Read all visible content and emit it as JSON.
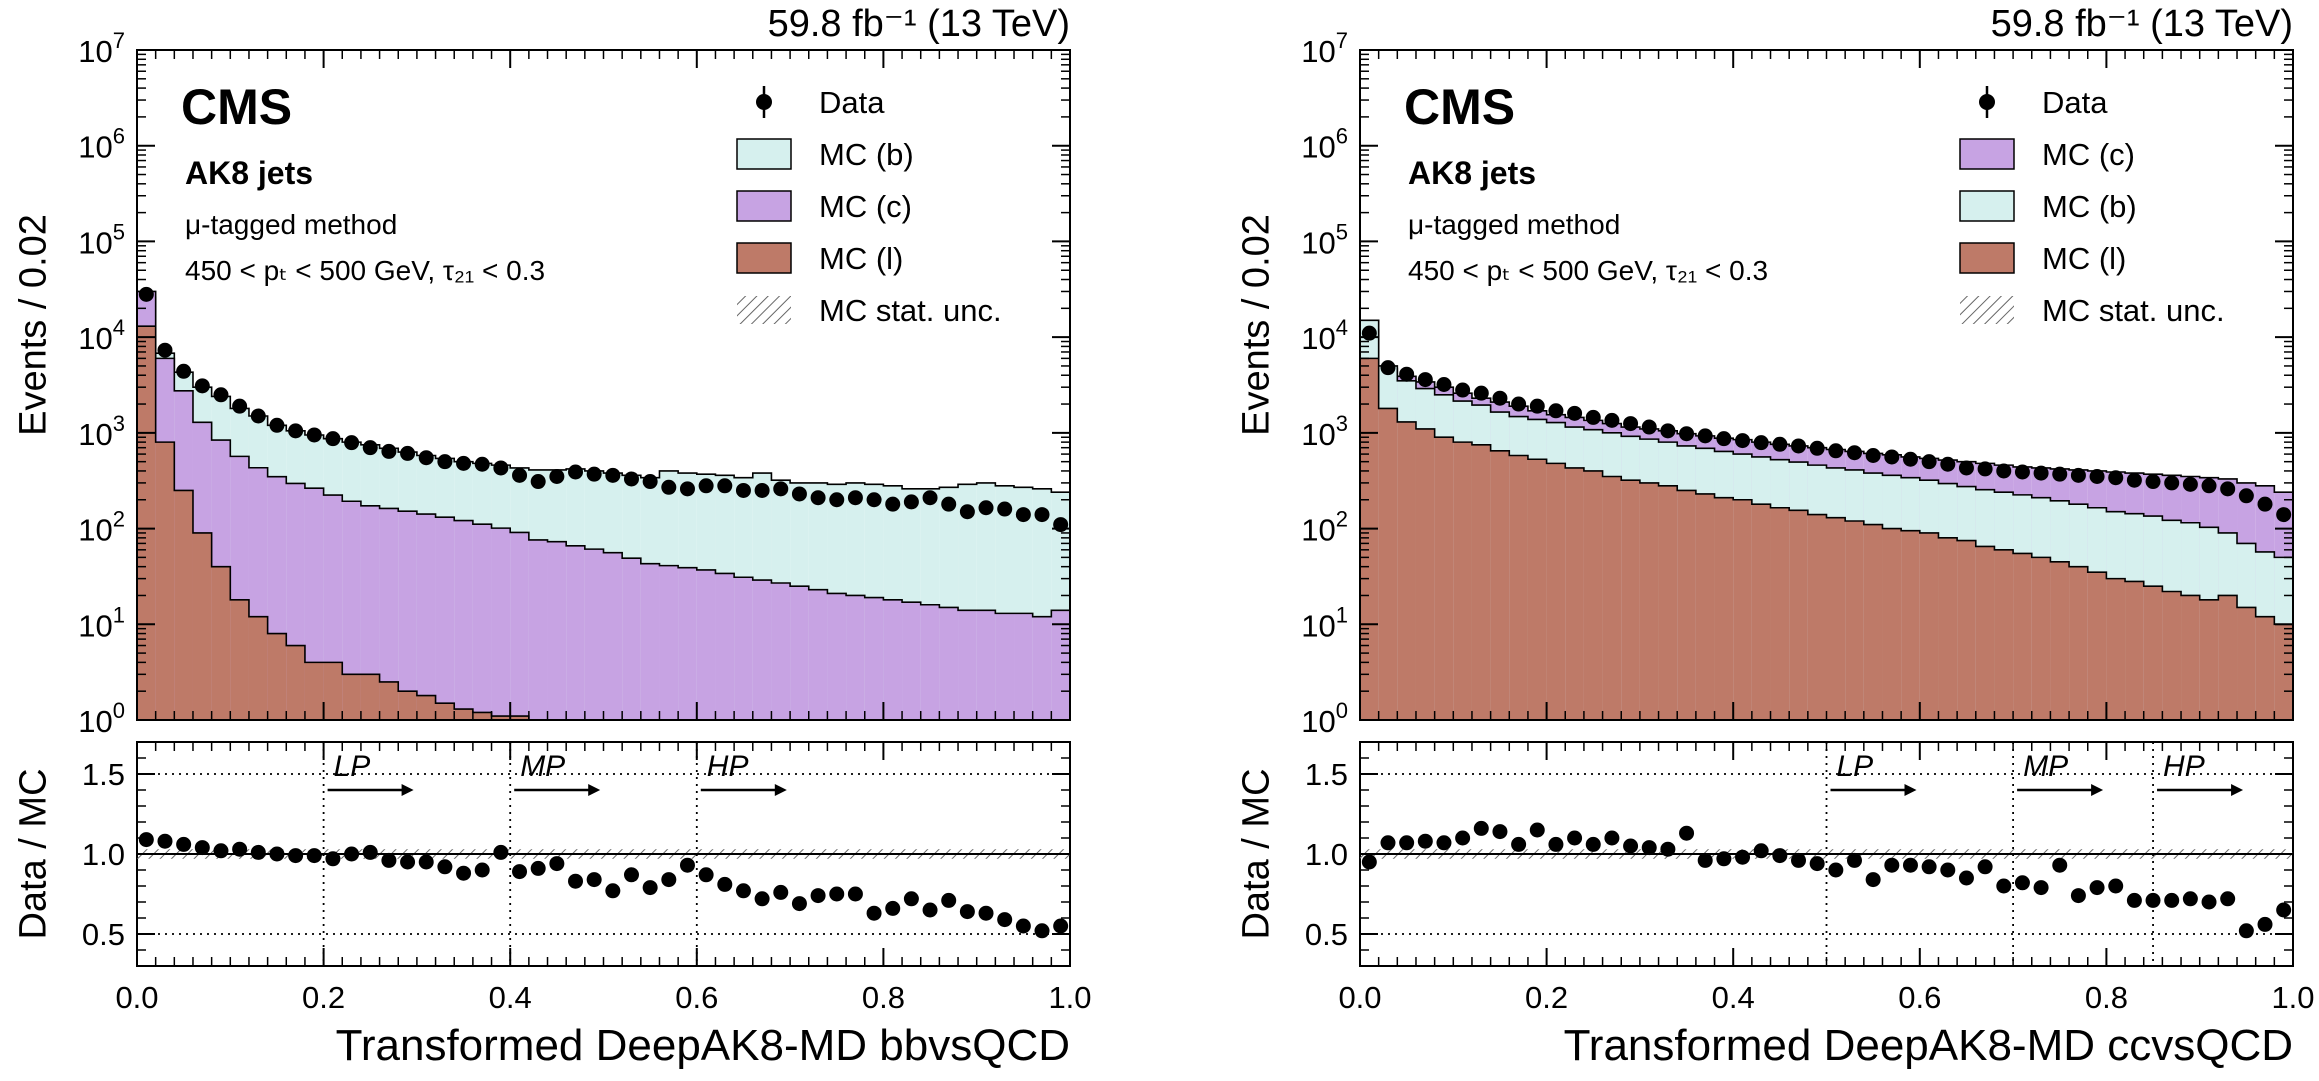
{
  "chart_data": [
    {
      "type": "histogram",
      "x_variable": "Transformed DeepAK8-MD bbvsQCD",
      "xlabel": "Transformed DeepAK8-MD bbvsQCD",
      "ylabel_top": "Events / 0.02",
      "ylabel_bottom": "Data / MC",
      "lumi_label": "59.8 fb⁻¹ (13 TeV)",
      "experiment": "CMS",
      "jet_label": "AK8 jets",
      "method_label": "μ-tagged method",
      "selection_label": "450 < pₜ < 500 GeV, τ₂₁ < 0.3",
      "xlim": [
        0.0,
        1.0
      ],
      "ylim_top": [
        1,
        10000000
      ],
      "ylim_ratio": [
        0.3,
        1.7
      ],
      "xticks": [
        "0.0",
        "0.2",
        "0.4",
        "0.6",
        "0.8",
        "1.0"
      ],
      "yticks_top": [
        "10",
        "10",
        "10",
        "10",
        "10",
        "10",
        "10",
        "10"
      ],
      "yticks_top_exponents": [
        "0",
        "1",
        "2",
        "3",
        "4",
        "5",
        "6",
        "7"
      ],
      "yticks_ratio": [
        "0.5",
        "1.0",
        "1.5"
      ],
      "legend": [
        "Data",
        "MC (b)",
        "MC (c)",
        "MC (l)",
        "MC stat. unc."
      ],
      "legend_colors": [
        "#000000",
        "#d6f0ee",
        "#c7a3e3",
        "#be7a68",
        "#777777"
      ],
      "stack_order": [
        "MC (l)",
        "MC (c)",
        "MC (b)"
      ],
      "bin_width": 0.02,
      "mc_l": [
        13000,
        800,
        250,
        90,
        40,
        18,
        12,
        8,
        6,
        4,
        4,
        3,
        3,
        2.5,
        2,
        1.8,
        1.5,
        1.3,
        1.2,
        1.1,
        1.1,
        1,
        1,
        1,
        1,
        1,
        1,
        1,
        1,
        1,
        1,
        1,
        1,
        1,
        1,
        1,
        1,
        1,
        1,
        1,
        1,
        1,
        1,
        1,
        1,
        1,
        1,
        1,
        1,
        1
      ],
      "mc_c": [
        17000,
        5200,
        2500,
        1200,
        800,
        550,
        420,
        340,
        290,
        260,
        220,
        190,
        170,
        160,
        150,
        140,
        130,
        120,
        110,
        100,
        90,
        75,
        72,
        65,
        60,
        55,
        48,
        42,
        40,
        38,
        36,
        33,
        30,
        28,
        26,
        24,
        22,
        20,
        19,
        18,
        17,
        16,
        15,
        14,
        13,
        13,
        12,
        12,
        11,
        13
      ],
      "mc_total": [
        26000,
        6800,
        4300,
        3000,
        2400,
        1800,
        1500,
        1200,
        1050,
        950,
        870,
        800,
        750,
        690,
        630,
        580,
        540,
        500,
        480,
        460,
        430,
        410,
        410,
        420,
        400,
        380,
        360,
        340,
        400,
        380,
        370,
        360,
        340,
        380,
        320,
        300,
        300,
        290,
        300,
        290,
        280,
        260,
        260,
        270,
        290,
        300,
        280,
        270,
        260,
        240
      ],
      "data_y": [
        28000,
        7300,
        4400,
        3100,
        2500,
        1900,
        1500,
        1200,
        1050,
        950,
        870,
        790,
        700,
        640,
        610,
        550,
        500,
        480,
        470,
        430,
        360,
        310,
        350,
        390,
        370,
        360,
        330,
        310,
        270,
        260,
        280,
        280,
        250,
        250,
        260,
        230,
        210,
        200,
        210,
        200,
        180,
        190,
        210,
        180,
        150,
        165,
        160,
        140,
        140,
        110
      ],
      "ratio_y": [
        1.09,
        1.08,
        1.06,
        1.04,
        1.02,
        1.03,
        1.01,
        1.0,
        0.99,
        0.99,
        0.97,
        1.0,
        1.01,
        0.96,
        0.95,
        0.95,
        0.92,
        0.88,
        0.9,
        1.01,
        0.89,
        0.91,
        0.94,
        0.83,
        0.84,
        0.77,
        0.87,
        0.79,
        0.84,
        0.93,
        0.87,
        0.81,
        0.77,
        0.72,
        0.76,
        0.69,
        0.74,
        0.75,
        0.75,
        0.63,
        0.66,
        0.72,
        0.65,
        0.71,
        0.64,
        0.63,
        0.59,
        0.55,
        0.52,
        0.55
      ],
      "working_points": [
        {
          "label": "LP",
          "x": 0.2
        },
        {
          "label": "MP",
          "x": 0.4
        },
        {
          "label": "HP",
          "x": 0.6
        }
      ]
    },
    {
      "type": "histogram",
      "x_variable": "Transformed DeepAK8-MD ccvsQCD",
      "xlabel": "Transformed DeepAK8-MD ccvsQCD",
      "ylabel_top": "Events / 0.02",
      "ylabel_bottom": "Data / MC",
      "lumi_label": "59.8 fb⁻¹ (13 TeV)",
      "experiment": "CMS",
      "jet_label": "AK8 jets",
      "method_label": "μ-tagged method",
      "selection_label": "450 < pₜ < 500 GeV, τ₂₁ < 0.3",
      "xlim": [
        0.0,
        1.0
      ],
      "ylim_top": [
        1,
        10000000
      ],
      "ylim_ratio": [
        0.3,
        1.7
      ],
      "xticks": [
        "0.0",
        "0.2",
        "0.4",
        "0.6",
        "0.8",
        "1.0"
      ],
      "yticks_top": [
        "10",
        "10",
        "10",
        "10",
        "10",
        "10",
        "10",
        "10"
      ],
      "yticks_top_exponents": [
        "0",
        "1",
        "2",
        "3",
        "4",
        "5",
        "6",
        "7"
      ],
      "yticks_ratio": [
        "0.5",
        "1.0",
        "1.5"
      ],
      "legend": [
        "Data",
        "MC (c)",
        "MC (b)",
        "MC (l)",
        "MC stat. unc."
      ],
      "legend_colors": [
        "#000000",
        "#c7a3e3",
        "#d6f0ee",
        "#be7a68",
        "#777777"
      ],
      "stack_order": [
        "MC (l)",
        "MC (b)",
        "MC (c)"
      ],
      "bin_width": 0.02,
      "mc_l": [
        6000,
        1800,
        1300,
        1100,
        900,
        800,
        750,
        650,
        580,
        530,
        480,
        430,
        400,
        350,
        320,
        300,
        280,
        250,
        230,
        210,
        200,
        180,
        165,
        155,
        140,
        130,
        120,
        110,
        100,
        95,
        90,
        80,
        75,
        65,
        60,
        55,
        50,
        45,
        40,
        35,
        30,
        28,
        25,
        22,
        20,
        18,
        20,
        15,
        12,
        10
      ],
      "mc_b": [
        9000,
        3200,
        2200,
        1800,
        1600,
        1350,
        1200,
        1000,
        900,
        850,
        800,
        720,
        680,
        650,
        600,
        560,
        520,
        480,
        460,
        430,
        400,
        380,
        360,
        340,
        320,
        300,
        290,
        270,
        260,
        245,
        230,
        215,
        200,
        190,
        180,
        170,
        160,
        150,
        140,
        130,
        120,
        115,
        110,
        100,
        95,
        85,
        70,
        55,
        45,
        40
      ],
      "mc_total": [
        12000,
        4700,
        3900,
        3400,
        3000,
        2600,
        2300,
        2100,
        1900,
        1700,
        1550,
        1450,
        1350,
        1250,
        1150,
        1100,
        1050,
        980,
        930,
        880,
        850,
        800,
        760,
        730,
        700,
        670,
        640,
        610,
        590,
        560,
        540,
        520,
        500,
        480,
        460,
        440,
        430,
        420,
        410,
        400,
        390,
        380,
        370,
        360,
        350,
        340,
        330,
        300,
        280,
        240
      ],
      "data_y": [
        11000,
        4800,
        4100,
        3600,
        3200,
        2800,
        2600,
        2300,
        2000,
        1900,
        1700,
        1600,
        1450,
        1350,
        1250,
        1150,
        1050,
        980,
        930,
        870,
        830,
        790,
        760,
        730,
        690,
        650,
        620,
        580,
        560,
        530,
        500,
        470,
        430,
        420,
        400,
        390,
        380,
        370,
        360,
        350,
        340,
        320,
        310,
        300,
        290,
        280,
        260,
        220,
        180,
        140
      ],
      "ratio_y": [
        0.95,
        1.07,
        1.07,
        1.08,
        1.07,
        1.1,
        1.16,
        1.14,
        1.06,
        1.15,
        1.06,
        1.1,
        1.06,
        1.1,
        1.05,
        1.04,
        1.03,
        1.13,
        0.96,
        0.97,
        0.98,
        1.02,
        0.99,
        0.96,
        0.94,
        0.9,
        0.96,
        0.84,
        0.93,
        0.93,
        0.92,
        0.9,
        0.85,
        0.92,
        0.8,
        0.82,
        0.79,
        0.93,
        0.74,
        0.79,
        0.8,
        0.71,
        0.71,
        0.71,
        0.72,
        0.7,
        0.72,
        0.52,
        0.56,
        0.65
      ],
      "working_points": [
        {
          "label": "LP",
          "x": 0.5
        },
        {
          "label": "MP",
          "x": 0.7
        },
        {
          "label": "HP",
          "x": 0.85
        }
      ]
    }
  ]
}
